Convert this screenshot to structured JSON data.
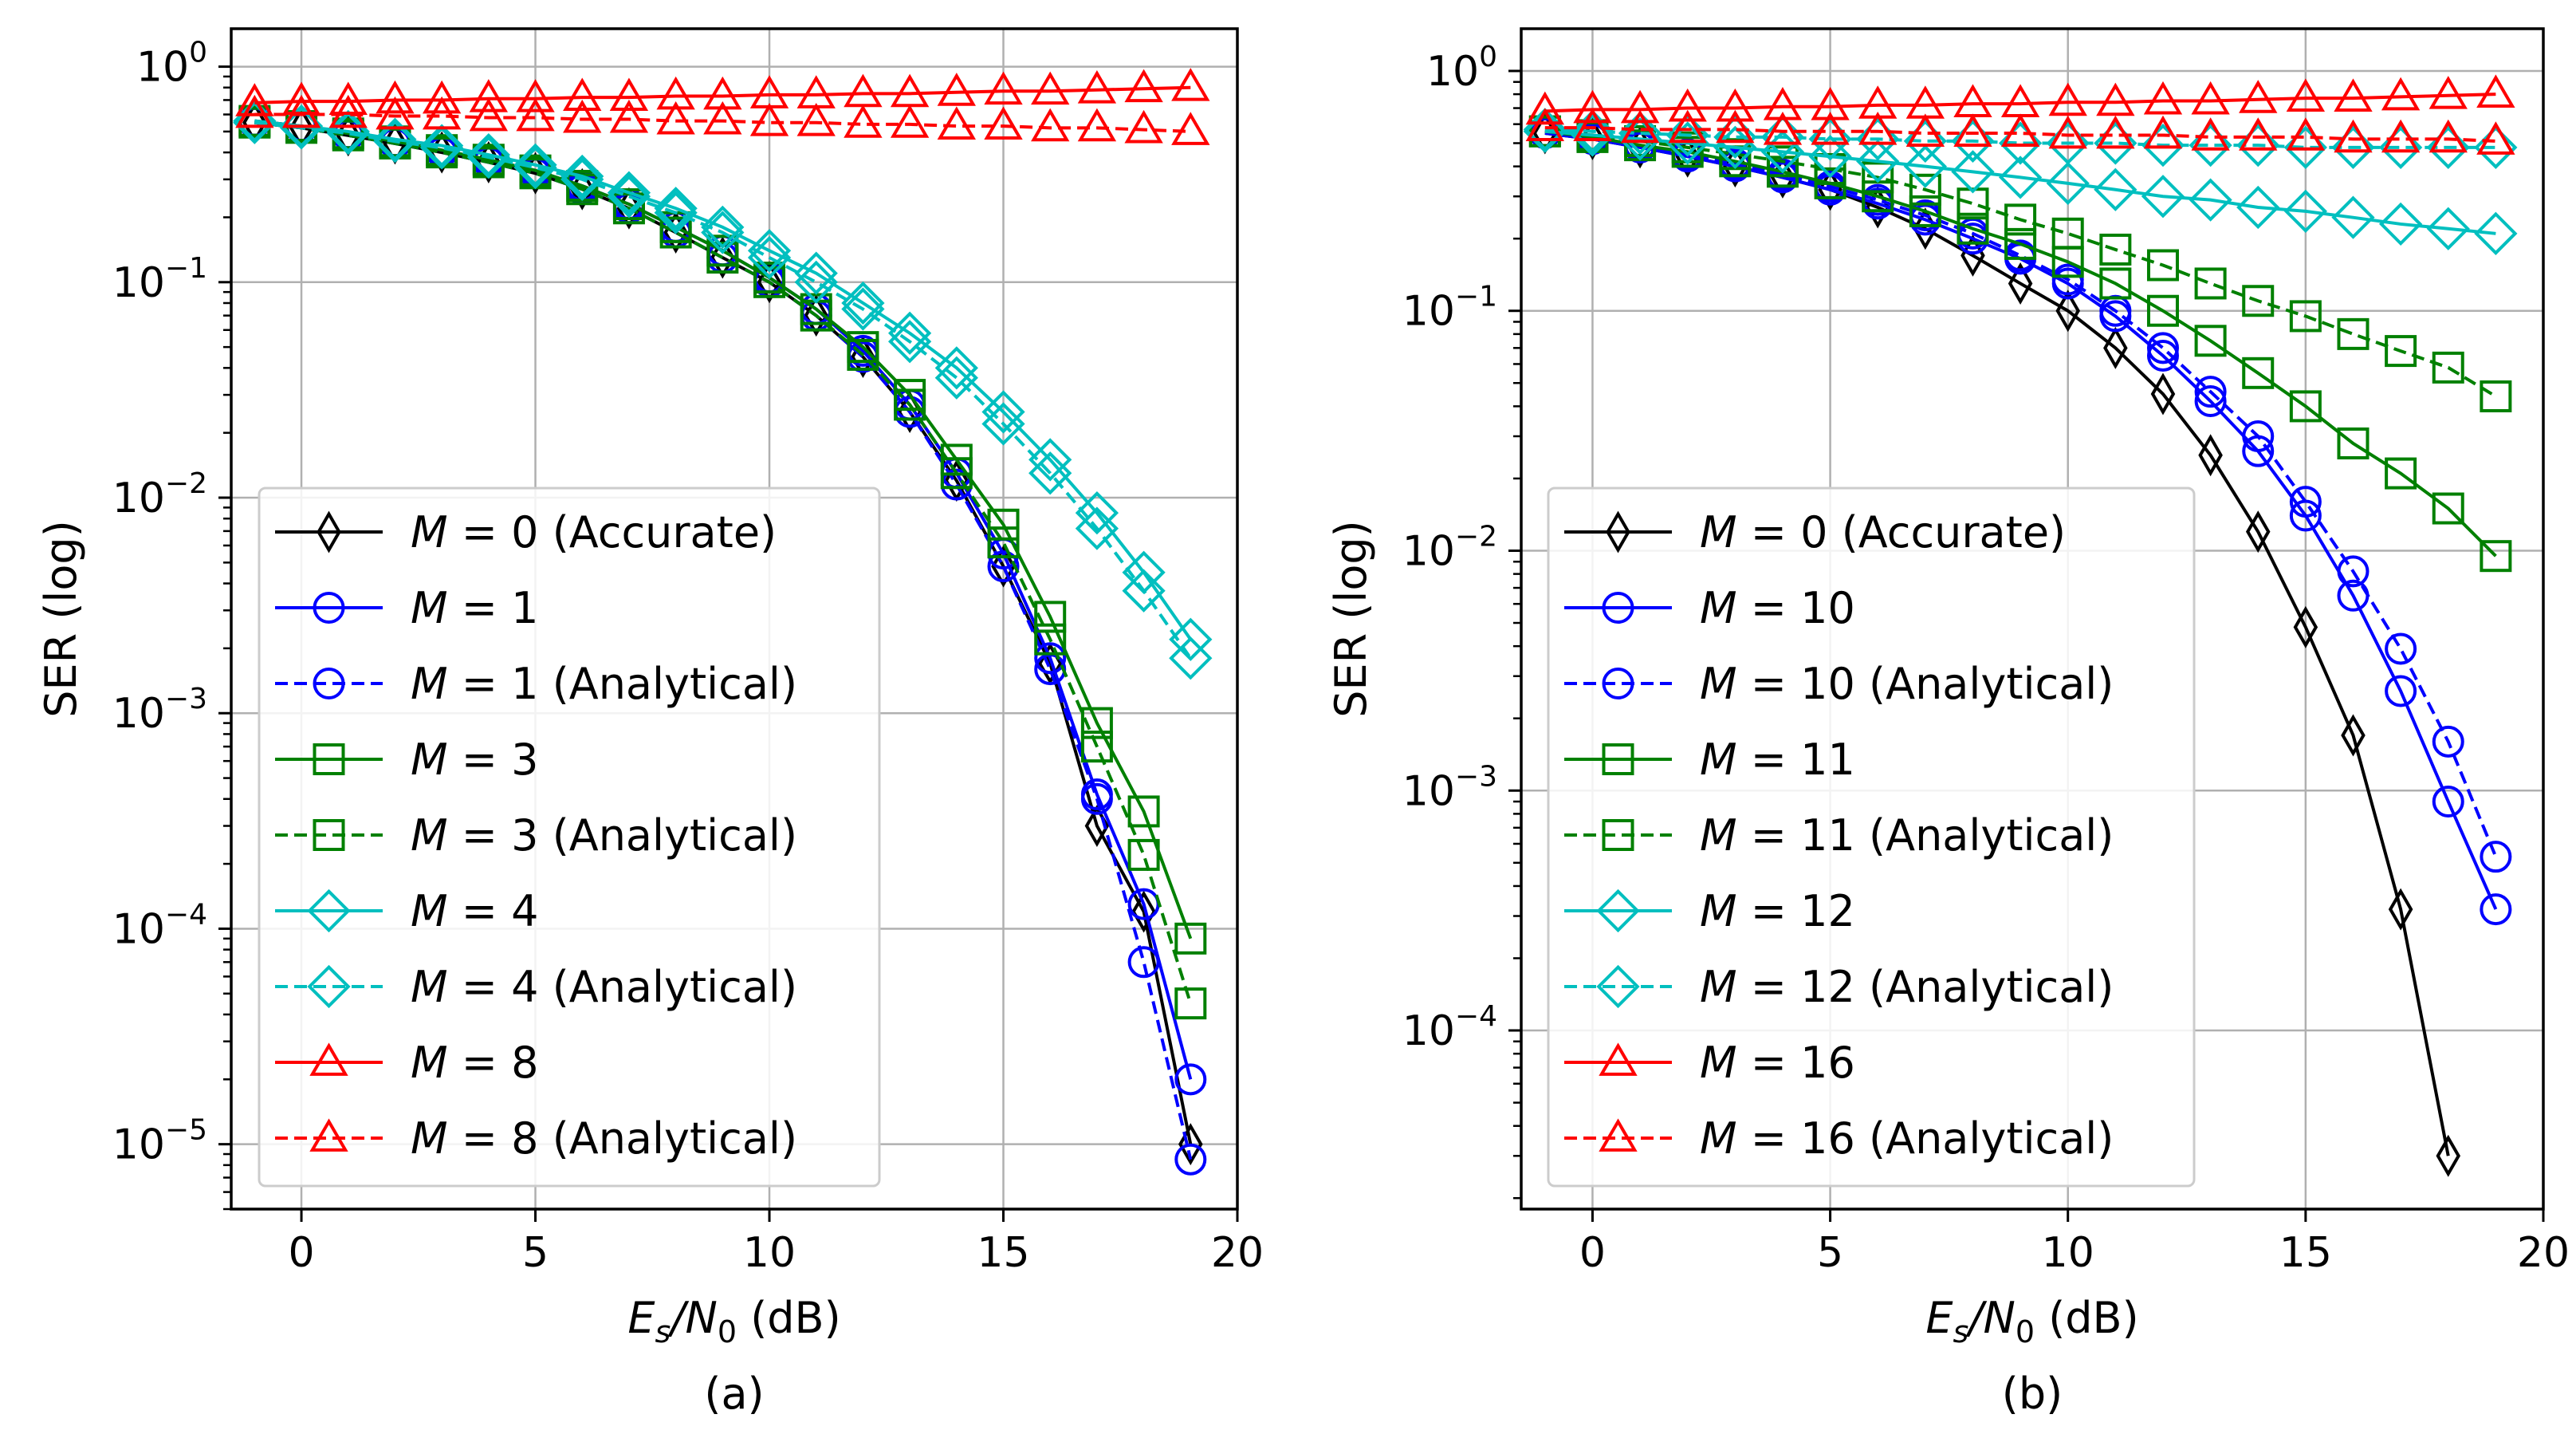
{
  "chart_data": [
    {
      "type": "line",
      "panel_label": "(a)",
      "xlabel": {
        "base": "E",
        "sub1": "s",
        "mid": "/N",
        "sub2": "0",
        "tail": " (dB)"
      },
      "ylabel": "SER (log)",
      "xlim": [
        -1.5,
        20
      ],
      "ylim": [
        5e-06,
        1.5
      ],
      "yscale": "log",
      "grid": true,
      "legend_position": "lower-left",
      "x_ticks": [
        0,
        5,
        10,
        15,
        20
      ],
      "x_tick_labels": [
        "0",
        "5",
        "10",
        "15",
        "20"
      ],
      "y_ticks": [
        {
          "value": 1,
          "exp": "0"
        },
        {
          "value": 0.1,
          "exp": "−1"
        },
        {
          "value": 0.01,
          "exp": "−2"
        },
        {
          "value": 0.001,
          "exp": "−3"
        },
        {
          "value": 0.0001,
          "exp": "−4"
        },
        {
          "value": 1e-05,
          "exp": "−5"
        }
      ],
      "x": [
        -1,
        0,
        1,
        2,
        3,
        4,
        5,
        6,
        7,
        8,
        9,
        10,
        11,
        12,
        13,
        14,
        15,
        16,
        17,
        18,
        19
      ],
      "series": [
        {
          "name": "M = 0 (Accurate)",
          "m": "0",
          "suffix": " (Accurate)",
          "color": "#000000",
          "dashed": false,
          "marker": "thin_diamond",
          "values": [
            0.55,
            0.52,
            0.48,
            0.44,
            0.4,
            0.36,
            0.32,
            0.27,
            0.22,
            0.17,
            0.13,
            0.1,
            0.07,
            0.045,
            0.025,
            0.012,
            0.0048,
            0.0017,
            0.0003,
            0.00012,
            1e-05
          ]
        },
        {
          "name": "M = 1",
          "m": "1",
          "suffix": "",
          "color": "#0000ff",
          "dashed": false,
          "marker": "circle",
          "values": [
            0.56,
            0.53,
            0.49,
            0.45,
            0.41,
            0.37,
            0.33,
            0.28,
            0.23,
            0.18,
            0.14,
            0.105,
            0.075,
            0.048,
            0.027,
            0.013,
            0.0055,
            0.0018,
            0.00042,
            0.00013,
            2e-05
          ]
        },
        {
          "name": "M = 1 (Analytical)",
          "m": "1",
          "suffix": " (Analytical)",
          "color": "#0000ff",
          "dashed": true,
          "marker": "circle",
          "values": [
            0.55,
            0.52,
            0.48,
            0.44,
            0.4,
            0.36,
            0.32,
            0.27,
            0.22,
            0.17,
            0.13,
            0.1,
            0.07,
            0.045,
            0.025,
            0.0115,
            0.0048,
            0.0016,
            0.0004,
            7e-05,
            8.5e-06
          ]
        },
        {
          "name": "M = 3",
          "m": "3",
          "suffix": "",
          "color": "#008000",
          "dashed": false,
          "marker": "square",
          "values": [
            0.56,
            0.53,
            0.49,
            0.45,
            0.41,
            0.37,
            0.33,
            0.28,
            0.23,
            0.18,
            0.14,
            0.105,
            0.075,
            0.05,
            0.03,
            0.015,
            0.0075,
            0.0028,
            0.0009,
            0.00035,
            9e-05
          ]
        },
        {
          "name": "M = 3 (Analytical)",
          "m": "3",
          "suffix": " (Analytical)",
          "color": "#008000",
          "dashed": true,
          "marker": "square",
          "values": [
            0.55,
            0.52,
            0.48,
            0.44,
            0.4,
            0.36,
            0.32,
            0.27,
            0.22,
            0.17,
            0.13,
            0.1,
            0.07,
            0.046,
            0.027,
            0.013,
            0.0062,
            0.0022,
            0.0007,
            0.00022,
            4.5e-05
          ]
        },
        {
          "name": "M = 4",
          "m": "4",
          "suffix": "",
          "color": "#00bfbf",
          "dashed": false,
          "marker": "diamond",
          "values": [
            0.56,
            0.53,
            0.5,
            0.46,
            0.43,
            0.39,
            0.35,
            0.31,
            0.26,
            0.22,
            0.18,
            0.14,
            0.11,
            0.08,
            0.058,
            0.04,
            0.025,
            0.015,
            0.0085,
            0.0045,
            0.0022
          ]
        },
        {
          "name": "M = 4 (Analytical)",
          "m": "4",
          "suffix": " (Analytical)",
          "color": "#00bfbf",
          "dashed": true,
          "marker": "diamond",
          "values": [
            0.55,
            0.52,
            0.49,
            0.45,
            0.42,
            0.38,
            0.34,
            0.3,
            0.25,
            0.21,
            0.17,
            0.13,
            0.1,
            0.075,
            0.053,
            0.036,
            0.022,
            0.013,
            0.0072,
            0.0037,
            0.0018
          ]
        },
        {
          "name": "M = 8",
          "m": "8",
          "suffix": "",
          "color": "#ff0000",
          "dashed": false,
          "marker": "triangle",
          "values": [
            0.68,
            0.69,
            0.69,
            0.7,
            0.7,
            0.71,
            0.71,
            0.72,
            0.72,
            0.73,
            0.73,
            0.74,
            0.74,
            0.75,
            0.75,
            0.76,
            0.77,
            0.77,
            0.78,
            0.79,
            0.8
          ]
        },
        {
          "name": "M = 8 (Analytical)",
          "m": "8",
          "suffix": " (Analytical)",
          "color": "#ff0000",
          "dashed": true,
          "marker": "triangle",
          "values": [
            0.6,
            0.6,
            0.6,
            0.59,
            0.59,
            0.58,
            0.58,
            0.57,
            0.57,
            0.56,
            0.56,
            0.55,
            0.55,
            0.54,
            0.54,
            0.53,
            0.53,
            0.52,
            0.52,
            0.51,
            0.5
          ]
        }
      ]
    },
    {
      "type": "line",
      "panel_label": "(b)",
      "xlabel": {
        "base": "E",
        "sub1": "s",
        "mid": "/N",
        "sub2": "0",
        "tail": " (dB)"
      },
      "ylabel": "SER (log)",
      "xlim": [
        -1.5,
        20
      ],
      "ylim": [
        1.8e-05,
        1.5
      ],
      "yscale": "log",
      "grid": true,
      "legend_position": "lower-left",
      "x_ticks": [
        0,
        5,
        10,
        15,
        20
      ],
      "x_tick_labels": [
        "0",
        "5",
        "10",
        "15",
        "20"
      ],
      "y_ticks": [
        {
          "value": 1,
          "exp": "0"
        },
        {
          "value": 0.1,
          "exp": "−1"
        },
        {
          "value": 0.01,
          "exp": "−2"
        },
        {
          "value": 0.001,
          "exp": "−3"
        },
        {
          "value": 0.0001,
          "exp": "−4"
        }
      ],
      "x": [
        -1,
        0,
        1,
        2,
        3,
        4,
        5,
        6,
        7,
        8,
        9,
        10,
        11,
        12,
        13,
        14,
        15,
        16,
        17,
        18,
        19
      ],
      "series": [
        {
          "name": "M = 0 (Accurate)",
          "m": "0",
          "suffix": " (Accurate)",
          "color": "#000000",
          "dashed": false,
          "marker": "thin_diamond",
          "values": [
            0.55,
            0.52,
            0.48,
            0.44,
            0.4,
            0.36,
            0.32,
            0.27,
            0.22,
            0.17,
            0.13,
            0.1,
            0.07,
            0.045,
            0.025,
            0.012,
            0.0048,
            0.0017,
            0.00032,
            3e-05,
            null
          ]
        },
        {
          "name": "M = 10",
          "m": "10",
          "suffix": "",
          "color": "#0000ff",
          "dashed": false,
          "marker": "circle",
          "values": [
            0.55,
            0.52,
            0.48,
            0.44,
            0.4,
            0.36,
            0.32,
            0.28,
            0.24,
            0.2,
            0.165,
            0.13,
            0.095,
            0.065,
            0.042,
            0.026,
            0.014,
            0.0065,
            0.0026,
            0.0009,
            0.00032
          ]
        },
        {
          "name": "M = 10 (Analytical)",
          "m": "10",
          "suffix": " (Analytical)",
          "color": "#0000ff",
          "dashed": true,
          "marker": "circle",
          "values": [
            0.56,
            0.53,
            0.49,
            0.45,
            0.41,
            0.37,
            0.33,
            0.29,
            0.25,
            0.21,
            0.17,
            0.135,
            0.1,
            0.07,
            0.046,
            0.03,
            0.016,
            0.0082,
            0.0039,
            0.0016,
            0.00053
          ]
        },
        {
          "name": "M = 11",
          "m": "11",
          "suffix": "",
          "color": "#008000",
          "dashed": false,
          "marker": "square",
          "values": [
            0.56,
            0.53,
            0.49,
            0.46,
            0.42,
            0.38,
            0.34,
            0.3,
            0.26,
            0.22,
            0.19,
            0.16,
            0.13,
            0.1,
            0.075,
            0.055,
            0.04,
            0.028,
            0.021,
            0.015,
            0.0095
          ]
        },
        {
          "name": "M = 11 (Analytical)",
          "m": "11",
          "suffix": " (Analytical)",
          "color": "#008000",
          "dashed": true,
          "marker": "square",
          "values": [
            0.56,
            0.54,
            0.51,
            0.48,
            0.45,
            0.42,
            0.39,
            0.36,
            0.32,
            0.28,
            0.24,
            0.21,
            0.18,
            0.155,
            0.13,
            0.11,
            0.095,
            0.08,
            0.068,
            0.058,
            0.044
          ]
        },
        {
          "name": "M = 12",
          "m": "12",
          "suffix": "",
          "color": "#00bfbf",
          "dashed": false,
          "marker": "diamond",
          "values": [
            0.56,
            0.54,
            0.52,
            0.5,
            0.48,
            0.46,
            0.44,
            0.42,
            0.4,
            0.38,
            0.36,
            0.34,
            0.32,
            0.3,
            0.29,
            0.27,
            0.26,
            0.245,
            0.23,
            0.22,
            0.21
          ]
        },
        {
          "name": "M = 12 (Analytical)",
          "m": "12",
          "suffix": " (Analytical)",
          "color": "#00bfbf",
          "dashed": true,
          "marker": "diamond",
          "values": [
            0.57,
            0.56,
            0.55,
            0.54,
            0.53,
            0.53,
            0.52,
            0.52,
            0.51,
            0.51,
            0.5,
            0.5,
            0.5,
            0.49,
            0.49,
            0.49,
            0.48,
            0.48,
            0.48,
            0.48,
            0.48
          ]
        },
        {
          "name": "M = 16",
          "m": "16",
          "suffix": "",
          "color": "#ff0000",
          "dashed": false,
          "marker": "triangle",
          "values": [
            0.68,
            0.69,
            0.69,
            0.7,
            0.7,
            0.71,
            0.71,
            0.72,
            0.72,
            0.73,
            0.73,
            0.74,
            0.74,
            0.75,
            0.75,
            0.76,
            0.77,
            0.77,
            0.78,
            0.79,
            0.8
          ]
        },
        {
          "name": "M = 16 (Analytical)",
          "m": "16",
          "suffix": " (Analytical)",
          "color": "#ff0000",
          "dashed": true,
          "marker": "triangle",
          "values": [
            0.58,
            0.58,
            0.57,
            0.57,
            0.57,
            0.56,
            0.56,
            0.56,
            0.55,
            0.55,
            0.55,
            0.54,
            0.54,
            0.54,
            0.53,
            0.53,
            0.53,
            0.52,
            0.52,
            0.52,
            0.51
          ]
        }
      ]
    }
  ]
}
